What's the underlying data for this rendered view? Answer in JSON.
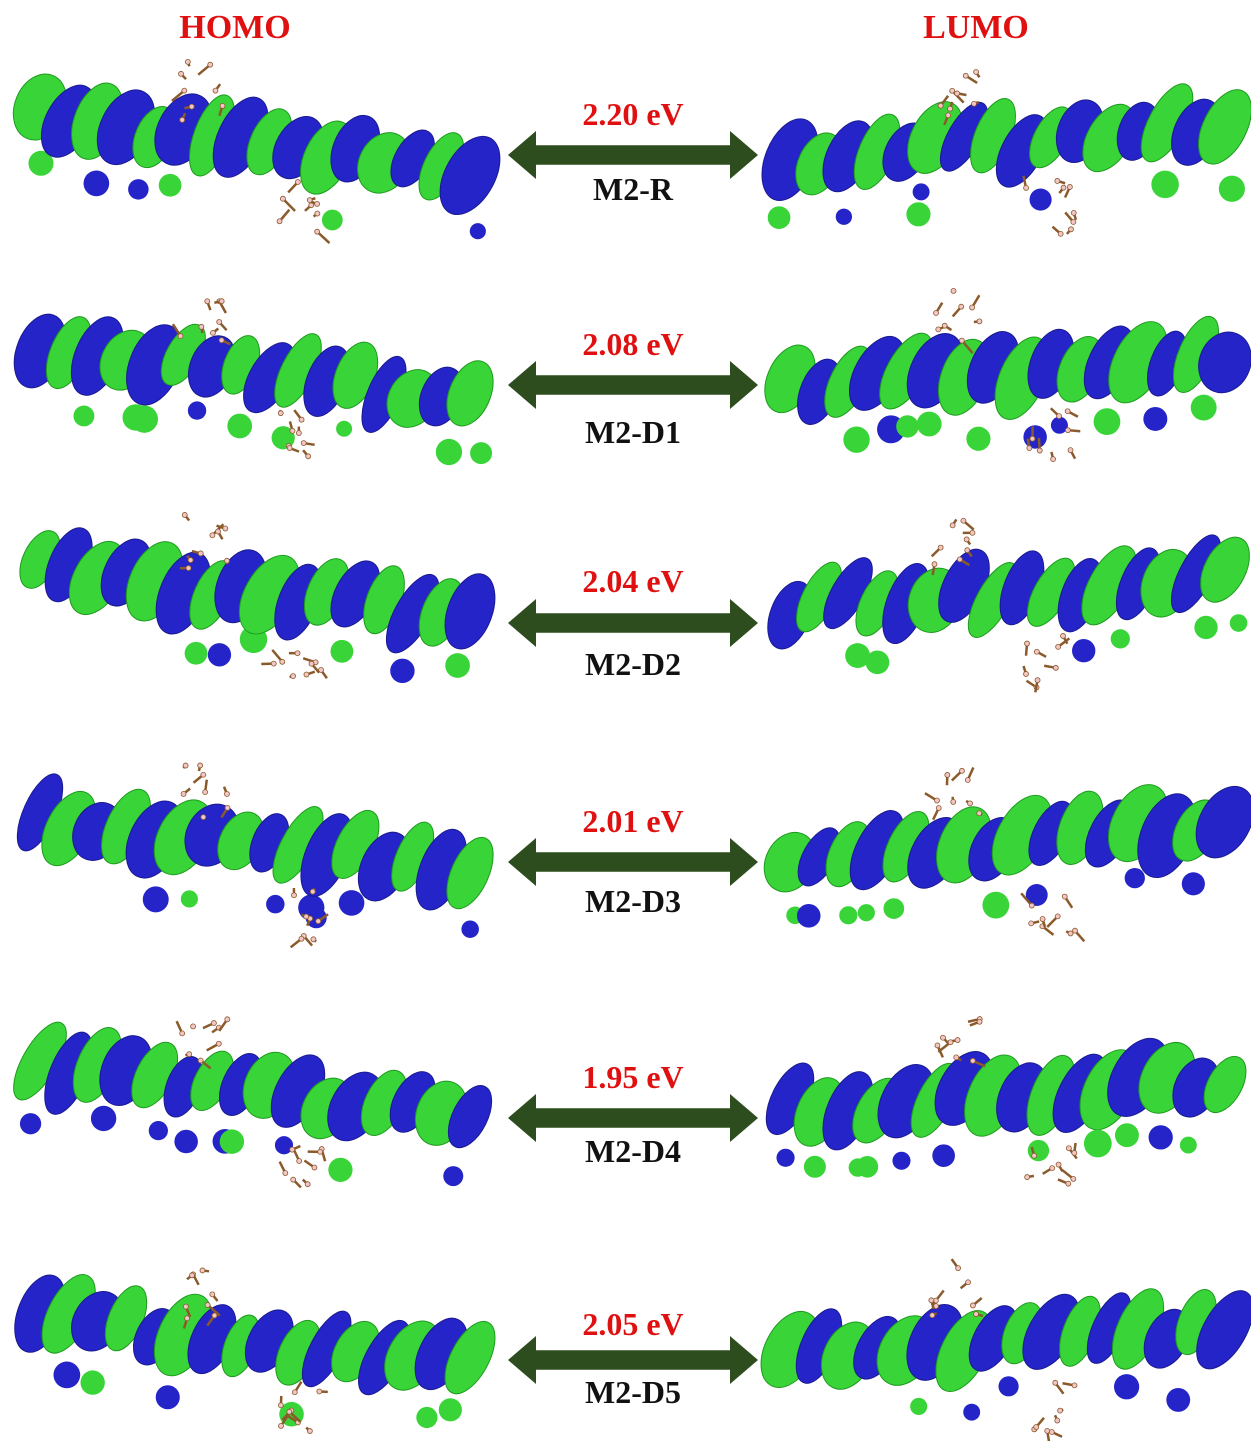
{
  "header": {
    "left": "HOMO",
    "right": "LUMO"
  },
  "rows": [
    {
      "gap": "2.20 eV",
      "label": "M2-R"
    },
    {
      "gap": "2.08 eV",
      "label": "M2-D1"
    },
    {
      "gap": "2.04 eV",
      "label": "M2-D2"
    },
    {
      "gap": "2.01 eV",
      "label": "M2-D3"
    },
    {
      "gap": "1.95 eV",
      "label": "M2-D4"
    },
    {
      "gap": "2.05 eV",
      "label": "M2-D5"
    }
  ]
}
